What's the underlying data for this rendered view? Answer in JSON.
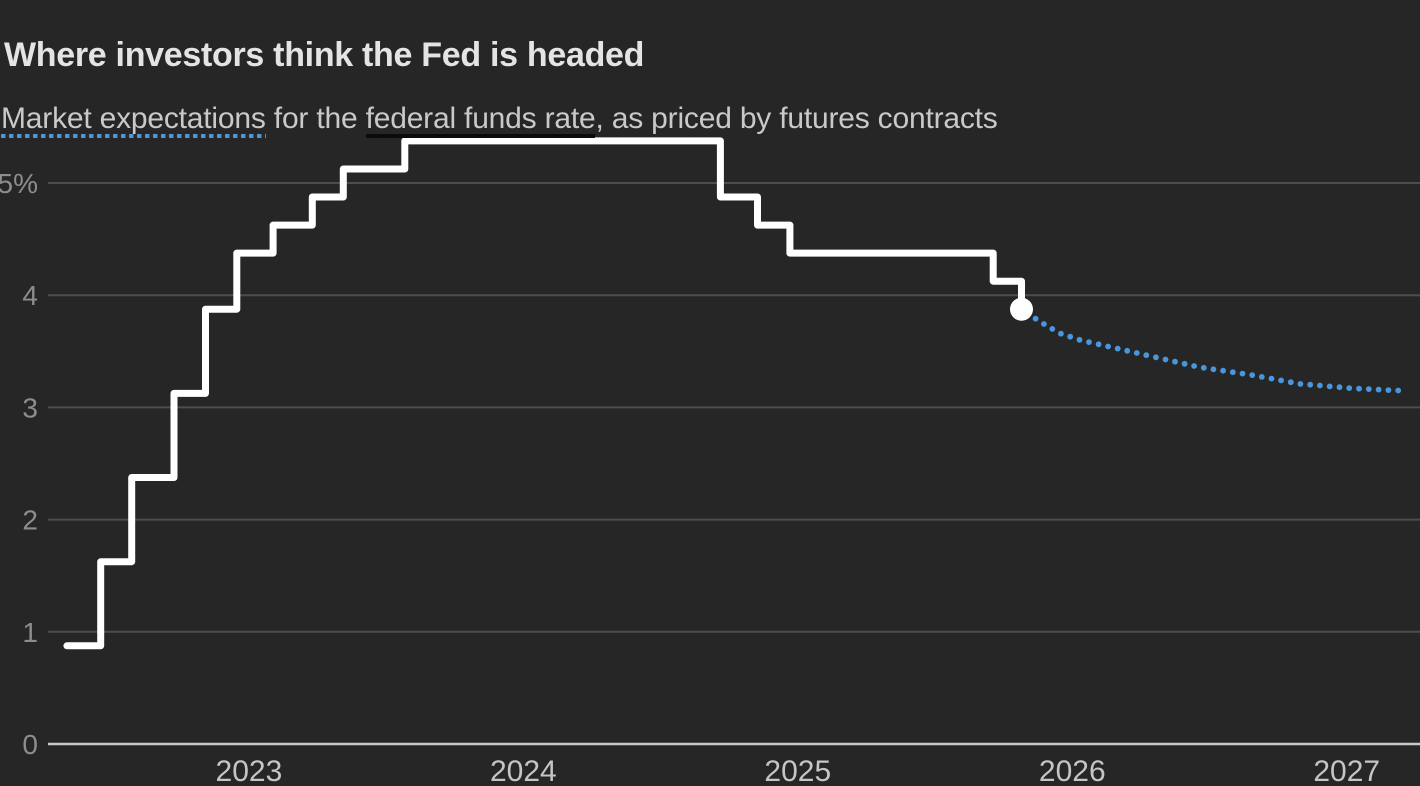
{
  "header": {
    "title": "Where investors think the Fed is headed",
    "subtitle_parts": {
      "lead": "Market expectations",
      "middle": " for the ",
      "key_term": "federal funds rate",
      "tail": ", as priced by futures contracts"
    }
  },
  "colors": {
    "bg": "#262626",
    "title": "#e4e4e4",
    "subtitle": "#c9c9c9",
    "history_line": "#ffffff",
    "marker_fill": "#ffffff",
    "forecast_dots": "#4a96dc",
    "solid_underline": "#0b0b0b",
    "gridline": "#4d4d4d",
    "zero_line": "#c9c9c9",
    "y_tick_label": "#8d8d8d",
    "x_tick_label": "#c5c5c5"
  },
  "chart_data": {
    "type": "line",
    "title": "Where investors think the Fed is headed",
    "subtitle": "Market expectations for the federal funds rate, as priced by futures contracts",
    "unit": "percent",
    "grid": "horizontal",
    "legend_position": "inline-subtitle-underlines",
    "xlim": [
      2022.268,
      2027.267
    ],
    "ylim": [
      0,
      5.5
    ],
    "y_ticks": [
      {
        "v": 5,
        "label": "5%",
        "emphasis": false
      },
      {
        "v": 4,
        "label": "4",
        "emphasis": false
      },
      {
        "v": 3,
        "label": "3",
        "emphasis": false
      },
      {
        "v": 2,
        "label": "2",
        "emphasis": false
      },
      {
        "v": 1,
        "label": "1",
        "emphasis": false
      },
      {
        "v": 0,
        "label": "0",
        "emphasis": true
      }
    ],
    "x_ticks": [
      {
        "t": 2023,
        "label": "2023"
      },
      {
        "t": 2024,
        "label": "2024"
      },
      {
        "t": 2025,
        "label": "2025"
      },
      {
        "t": 2026,
        "label": "2026"
      },
      {
        "t": 2027,
        "label": "2027"
      }
    ],
    "series": [
      {
        "name": "Federal funds rate (target-range midpoint, actual)",
        "style": "step-solid",
        "points": [
          {
            "t": 2022.337,
            "v": 0.875
          },
          {
            "t": 2022.46,
            "v": 1.625
          },
          {
            "t": 2022.573,
            "v": 2.375
          },
          {
            "t": 2022.727,
            "v": 3.125
          },
          {
            "t": 2022.842,
            "v": 3.875
          },
          {
            "t": 2022.956,
            "v": 4.375
          },
          {
            "t": 2023.088,
            "v": 4.625
          },
          {
            "t": 2023.231,
            "v": 4.875
          },
          {
            "t": 2023.344,
            "v": 5.125
          },
          {
            "t": 2023.568,
            "v": 5.375
          },
          {
            "t": 2024.718,
            "v": 4.875
          },
          {
            "t": 2024.853,
            "v": 4.625
          },
          {
            "t": 2024.971,
            "v": 4.375
          },
          {
            "t": 2025.712,
            "v": 4.125
          },
          {
            "t": 2025.815,
            "v": 3.875
          }
        ]
      },
      {
        "name": "Market expectations (futures-implied path)",
        "style": "dotted",
        "points": [
          {
            "t": 2025.815,
            "v": 3.875
          },
          {
            "t": 2025.885,
            "v": 3.76
          },
          {
            "t": 2025.955,
            "v": 3.66
          },
          {
            "t": 2026.03,
            "v": 3.6
          },
          {
            "t": 2026.1,
            "v": 3.56
          },
          {
            "t": 2026.28,
            "v": 3.46
          },
          {
            "t": 2026.46,
            "v": 3.36
          },
          {
            "t": 2026.65,
            "v": 3.29
          },
          {
            "t": 2026.83,
            "v": 3.21
          },
          {
            "t": 2027.02,
            "v": 3.17
          },
          {
            "t": 2027.19,
            "v": 3.15
          }
        ]
      }
    ],
    "end_marker": {
      "t": 2025.815,
      "v": 3.875
    }
  }
}
